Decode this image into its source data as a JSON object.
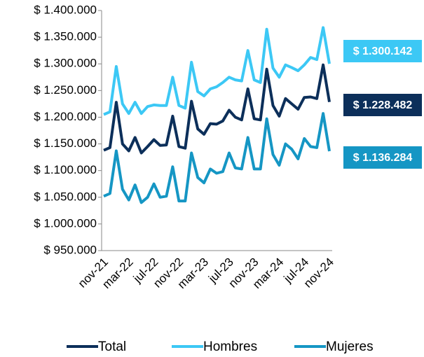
{
  "chart_data": {
    "type": "line",
    "categories": [
      "nov-21",
      null,
      null,
      null,
      "mar-22",
      null,
      null,
      null,
      "jul-22",
      null,
      null,
      null,
      "nov-22",
      null,
      null,
      null,
      "mar-23",
      null,
      null,
      null,
      "jul-23",
      null,
      null,
      null,
      "nov-23",
      null,
      null,
      null,
      "mar-24",
      null,
      null,
      null,
      "jul-24",
      null,
      null,
      null,
      "nov-24"
    ],
    "series": [
      {
        "name": "Total",
        "color": "#0c2f5a",
        "values": [
          1138000,
          1143000,
          1228000,
          1150000,
          1137000,
          1162000,
          1133000,
          1145000,
          1158000,
          1147000,
          1148000,
          1202000,
          1145000,
          1142000,
          1230000,
          1178000,
          1168000,
          1188000,
          1187000,
          1193000,
          1213000,
          1200000,
          1195000,
          1253000,
          1197000,
          1195000,
          1290000,
          1222000,
          1202000,
          1235000,
          1225000,
          1215000,
          1237000,
          1238000,
          1235000,
          1298000,
          1228482
        ],
        "value_labels": [
          null,
          null,
          null,
          null,
          null,
          null,
          null,
          null,
          null,
          null,
          null,
          null,
          null,
          null,
          null,
          null,
          null,
          null,
          null,
          null,
          null,
          null,
          null,
          null,
          null,
          null,
          null,
          null,
          null,
          null,
          null,
          null,
          null,
          null,
          null,
          null,
          "$ 1.228.482"
        ]
      },
      {
        "name": "Hombres",
        "color": "#3cc8f5",
        "values": [
          1205000,
          1210000,
          1295000,
          1225000,
          1207000,
          1228000,
          1207000,
          1220000,
          1223000,
          1222000,
          1222000,
          1275000,
          1222000,
          1217000,
          1303000,
          1248000,
          1240000,
          1253000,
          1257000,
          1265000,
          1275000,
          1270000,
          1268000,
          1325000,
          1270000,
          1265000,
          1365000,
          1292000,
          1275000,
          1298000,
          1293000,
          1287000,
          1298000,
          1312000,
          1308000,
          1368000,
          1300142
        ],
        "value_labels": [
          null,
          null,
          null,
          null,
          null,
          null,
          null,
          null,
          null,
          null,
          null,
          null,
          null,
          null,
          null,
          null,
          null,
          null,
          null,
          null,
          null,
          null,
          null,
          null,
          null,
          null,
          null,
          null,
          null,
          null,
          null,
          null,
          null,
          null,
          null,
          null,
          "$ 1.300.142"
        ]
      },
      {
        "name": "Mujeres",
        "color": "#1596c4",
        "values": [
          1052000,
          1057000,
          1137000,
          1065000,
          1045000,
          1073000,
          1040000,
          1050000,
          1075000,
          1050000,
          1052000,
          1107000,
          1043000,
          1043000,
          1133000,
          1087000,
          1077000,
          1103000,
          1095000,
          1098000,
          1133000,
          1105000,
          1103000,
          1162000,
          1103000,
          1103000,
          1197000,
          1130000,
          1110000,
          1150000,
          1140000,
          1122000,
          1160000,
          1145000,
          1143000,
          1207000,
          1136284
        ],
        "value_labels": [
          null,
          null,
          null,
          null,
          null,
          null,
          null,
          null,
          null,
          null,
          null,
          null,
          null,
          null,
          null,
          null,
          null,
          null,
          null,
          null,
          null,
          null,
          null,
          null,
          null,
          null,
          null,
          null,
          null,
          null,
          null,
          null,
          null,
          null,
          null,
          null,
          "$ 1.136.284"
        ]
      }
    ],
    "ylim": [
      950000,
      1400000
    ],
    "yticks": [
      {
        "value": 950000,
        "label": "$ 950.000"
      },
      {
        "value": 1000000,
        "label": "$ 1.000.000"
      },
      {
        "value": 1050000,
        "label": "$ 1.050.000"
      },
      {
        "value": 1100000,
        "label": "$ 1.100.000"
      },
      {
        "value": 1150000,
        "label": "$ 1.150.000"
      },
      {
        "value": 1200000,
        "label": "$ 1.200.000"
      },
      {
        "value": 1250000,
        "label": "$ 1.250.000"
      },
      {
        "value": 1300000,
        "label": "$ 1.300.000"
      },
      {
        "value": 1350000,
        "label": "$ 1.350.000"
      },
      {
        "value": 1400000,
        "label": "$ 1.400.000"
      }
    ],
    "grid": false,
    "legend": "bottom"
  }
}
